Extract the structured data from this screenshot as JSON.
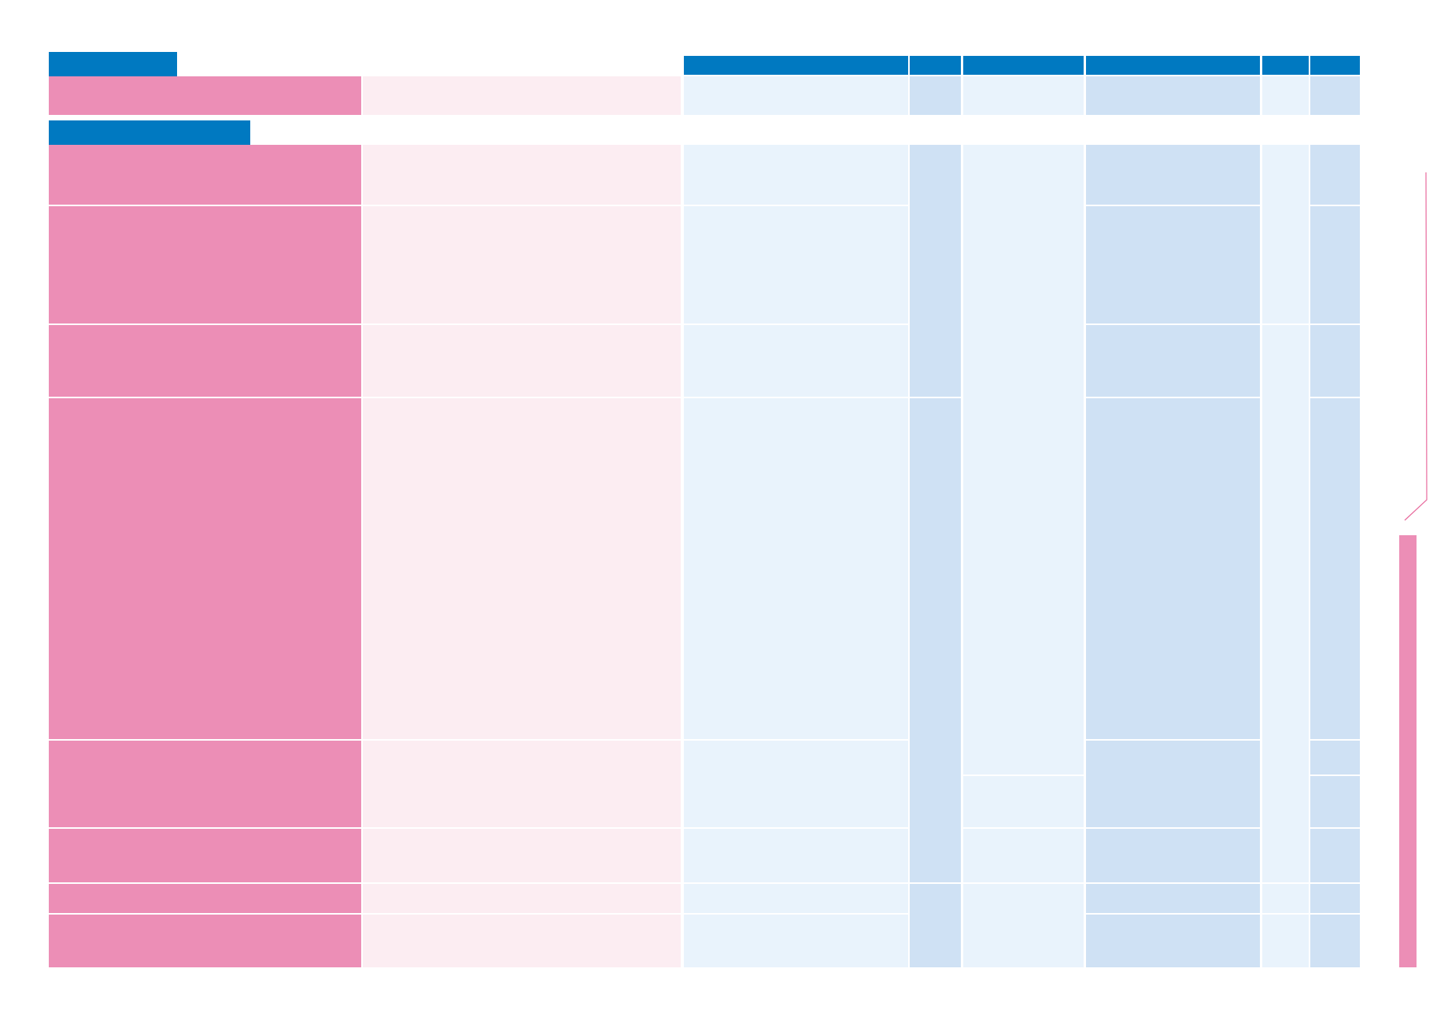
{
  "sections": [
    {
      "id": "section-1",
      "title": ""
    },
    {
      "id": "section-2",
      "title": ""
    }
  ],
  "table": {
    "column_headers": [
      "",
      "",
      "",
      "",
      "",
      ""
    ],
    "section_1_rows": [
      {
        "label": "",
        "description": "",
        "c1": "",
        "c2": "",
        "c3": "",
        "c4": "",
        "c5": "",
        "c6": ""
      }
    ],
    "section_2_rows": [
      {
        "label": "",
        "description": "",
        "c1": "",
        "c4": "",
        "c6": ""
      },
      {
        "label": "",
        "description": "",
        "c1": "",
        "c4": "",
        "c6": ""
      },
      {
        "label": "",
        "description": "",
        "c1": "",
        "c4": "",
        "c6": ""
      },
      {
        "label": "",
        "description": "",
        "c1": "",
        "c4": "",
        "c6": ""
      },
      {
        "label": "",
        "description": "",
        "c1": "",
        "c4": "",
        "c6": ""
      },
      {
        "label": "",
        "description": "",
        "c1": "",
        "c4": "",
        "c6": ""
      },
      {
        "label": "",
        "description": "",
        "c1": "",
        "c4": "",
        "c6": ""
      },
      {
        "label": "",
        "description": "",
        "c1": "",
        "c4": "",
        "c6": ""
      }
    ]
  },
  "side_note": "",
  "colors": {
    "header_blue": "#0079c1",
    "label_pink": "#ec8eb6",
    "description_pink": "#fcedf2",
    "cell_blue_light": "#e9f3fc",
    "cell_blue": "#cfe1f4",
    "bracket_pink": "#e86a9d"
  }
}
